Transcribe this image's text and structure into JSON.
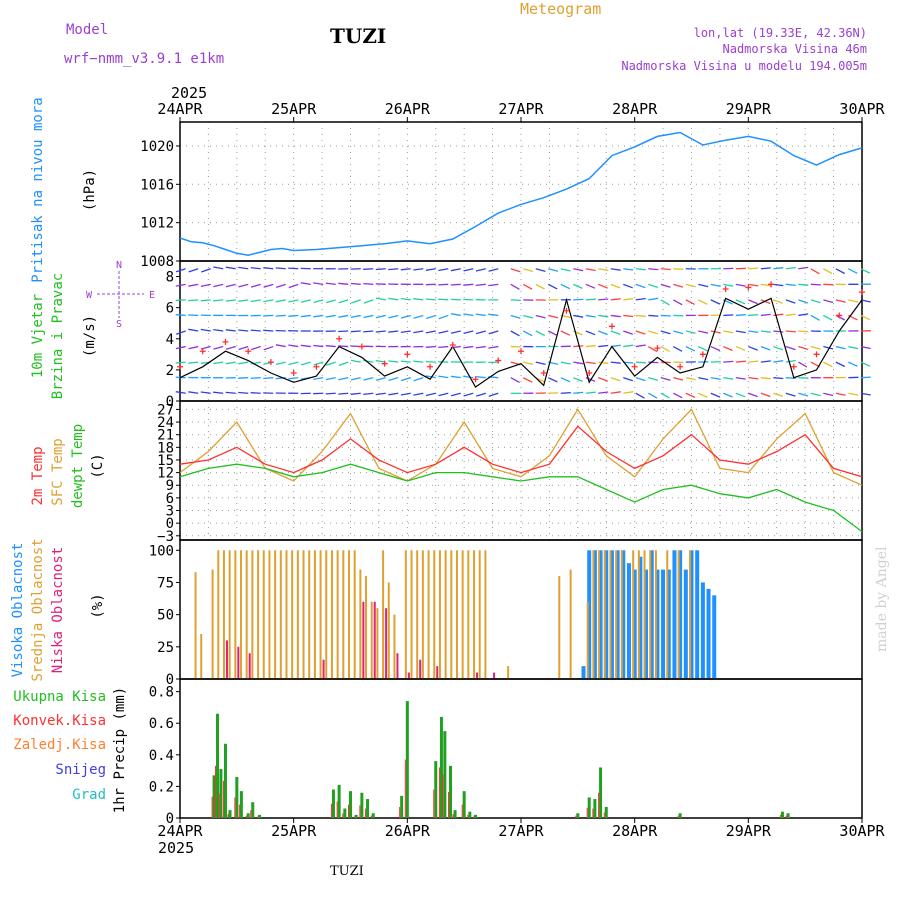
{
  "header": {
    "model_label": "Model",
    "model_name": "wrf−nmm_v3.9.1  e1km",
    "station": "TUZI",
    "chart_title": "Meteogram",
    "coords": "lon,lat (19.33E, 42.36N)",
    "elevation": "Nadmorska Visina 46m",
    "model_elevation": "Nadmorska Visina u modelu 194.005m",
    "year_top": "2025",
    "year_bottom": "2025",
    "footer_station": "TUZI",
    "watermark": "made by Angel"
  },
  "colors": {
    "pressure": "#1e90ff",
    "wind_speed": "#000000",
    "gust": "#ff3030",
    "temp_2m": "#ff3030",
    "temp_sfc": "#e0a030",
    "dewpoint": "#20c020",
    "cloud_high": "#1e90ff",
    "cloud_mid": "#e0a030",
    "cloud_low": "#e0207a",
    "precip_total": "#20a020",
    "precip_conv": "#ff3030",
    "model_label": "#9b40d0",
    "title": "#e0a030",
    "watermark": "#d0d0d0"
  },
  "chart_data": [
    {
      "type": "line",
      "x_labels": [
        "24APR",
        "25APR",
        "26APR",
        "27APR",
        "28APR",
        "29APR",
        "30APR"
      ],
      "ylabel": [
        "Pritisak na nivou mora",
        "(hPa)"
      ],
      "yticks": [
        1008,
        1012,
        1016,
        1020
      ],
      "ylim": [
        1008,
        1022.5
      ],
      "grid": true,
      "series": [
        {
          "name": "Pritisak na nivou mora",
          "x": [
            0,
            0.1,
            0.2,
            0.3,
            0.4,
            0.5,
            0.6,
            0.7,
            0.8,
            0.9,
            1.0,
            1.2,
            1.4,
            1.6,
            1.8,
            2.0,
            2.2,
            2.4,
            2.6,
            2.8,
            3.0,
            3.2,
            3.4,
            3.6,
            3.8,
            4.0,
            4.2,
            4.4,
            4.6,
            4.8,
            5.0,
            5.2,
            5.4,
            5.6,
            5.8,
            6.0
          ],
          "values": [
            1010.4,
            1010.0,
            1009.9,
            1009.6,
            1009.2,
            1008.8,
            1008.6,
            1008.9,
            1009.2,
            1009.3,
            1009.1,
            1009.2,
            1009.4,
            1009.6,
            1009.8,
            1010.1,
            1009.8,
            1010.3,
            1011.6,
            1013.0,
            1013.9,
            1014.6,
            1015.5,
            1016.6,
            1019.0,
            1019.9,
            1021.0,
            1021.4,
            1020.1,
            1020.6,
            1021.0,
            1020.5,
            1019.0,
            1018.0,
            1019.1,
            1019.8
          ]
        }
      ]
    },
    {
      "type": "line",
      "ylabel": [
        "10m Vjetar",
        "Brzina i Pravac",
        "(m/s)"
      ],
      "compass_legend": [
        "N",
        "W",
        "E",
        "S"
      ],
      "yticks": [
        0,
        2,
        4,
        6,
        8
      ],
      "ylim": [
        0,
        9
      ],
      "series": [
        {
          "name": "speed",
          "x": [
            0,
            0.2,
            0.4,
            0.6,
            0.8,
            1.0,
            1.2,
            1.4,
            1.6,
            1.8,
            2.0,
            2.2,
            2.4,
            2.6,
            2.8,
            3.0,
            3.2,
            3.4,
            3.6,
            3.8,
            4.0,
            4.2,
            4.4,
            4.6,
            4.8,
            5.0,
            5.2,
            5.4,
            5.6,
            5.8,
            6.0
          ],
          "values": [
            1.5,
            2.2,
            3.2,
            2.6,
            1.8,
            1.2,
            1.6,
            3.5,
            2.8,
            1.6,
            2.2,
            1.4,
            3.5,
            0.9,
            1.9,
            2.4,
            1.0,
            6.5,
            1.2,
            3.5,
            1.6,
            2.8,
            1.8,
            2.2,
            6.6,
            5.9,
            6.6,
            1.5,
            2.0,
            4.5,
            6.5
          ]
        },
        {
          "name": "gust",
          "x": [
            0,
            0.2,
            0.4,
            0.6,
            0.8,
            1.0,
            1.2,
            1.4,
            1.6,
            1.8,
            2.0,
            2.2,
            2.4,
            2.6,
            2.8,
            3.0,
            3.2,
            3.4,
            3.6,
            3.8,
            4.0,
            4.2,
            4.4,
            4.6,
            4.8,
            5.0,
            5.2,
            5.4,
            5.6,
            5.8,
            6.0
          ],
          "values": [
            2.2,
            3.2,
            3.8,
            3.2,
            2.5,
            1.8,
            2.2,
            4.0,
            3.5,
            2.4,
            3.0,
            2.2,
            3.6,
            1.4,
            2.6,
            3.2,
            1.8,
            5.8,
            1.8,
            4.8,
            2.2,
            3.4,
            2.2,
            3.0,
            7.2,
            7.3,
            7.5,
            2.2,
            3.0,
            5.5,
            7.0
          ]
        }
      ]
    },
    {
      "type": "line",
      "ylabel": [
        "2m Temp",
        "SFC Temp",
        "dewpt Temp",
        "(C)"
      ],
      "yticks": [
        -3,
        0,
        3,
        6,
        9,
        12,
        15,
        18,
        21,
        24,
        27
      ],
      "ylim": [
        -4,
        29
      ],
      "grid": true,
      "series": [
        {
          "name": "2m Temp",
          "x": [
            0,
            0.25,
            0.5,
            0.75,
            1.0,
            1.25,
            1.5,
            1.75,
            2.0,
            2.25,
            2.5,
            2.75,
            3.0,
            3.25,
            3.5,
            3.75,
            4.0,
            4.25,
            4.5,
            4.75,
            5.0,
            5.25,
            5.5,
            5.75,
            6.0
          ],
          "values": [
            14,
            15,
            18,
            14,
            12,
            15,
            20,
            15,
            12,
            14,
            18,
            14,
            12,
            14,
            23,
            17,
            13,
            16,
            21,
            15,
            14,
            17,
            21,
            13,
            11
          ]
        },
        {
          "name": "SFC Temp",
          "x": [
            0,
            0.25,
            0.5,
            0.75,
            1.0,
            1.25,
            1.5,
            1.75,
            2.0,
            2.25,
            2.5,
            2.75,
            3.0,
            3.25,
            3.5,
            3.75,
            4.0,
            4.25,
            4.5,
            4.75,
            5.0,
            5.25,
            5.5,
            5.75,
            6.0
          ],
          "values": [
            12,
            17,
            24,
            13,
            10,
            17,
            26,
            13,
            10,
            14,
            24,
            13,
            11,
            16,
            27,
            16,
            11,
            20,
            27,
            13,
            12,
            20,
            26,
            12,
            9
          ]
        },
        {
          "name": "dewpt Temp",
          "x": [
            0,
            0.25,
            0.5,
            0.75,
            1.0,
            1.25,
            1.5,
            1.75,
            2.0,
            2.25,
            2.5,
            2.75,
            3.0,
            3.25,
            3.5,
            3.75,
            4.0,
            4.25,
            4.5,
            4.75,
            5.0,
            5.25,
            5.5,
            5.75,
            6.0
          ],
          "values": [
            11,
            13,
            14,
            13,
            11,
            12,
            14,
            12,
            10,
            12,
            12,
            11,
            10,
            11,
            11,
            8,
            5,
            8,
            9,
            7,
            6,
            8,
            5,
            3,
            -2
          ]
        }
      ]
    },
    {
      "type": "bar",
      "ylabel": [
        "Visoka Oblacnost",
        "Srednja Oblacnost",
        "Niska Oblacnost",
        "(%)"
      ],
      "yticks": [
        0,
        25,
        50,
        75,
        100
      ],
      "ylim": [
        0,
        108
      ],
      "series": [
        {
          "name": "Visoka Oblacnost",
          "x": [
            3.55,
            3.6,
            3.65,
            3.7,
            3.75,
            3.8,
            3.85,
            3.9,
            3.95,
            4.0,
            4.05,
            4.1,
            4.15,
            4.2,
            4.25,
            4.3,
            4.35,
            4.4,
            4.45,
            4.5,
            4.55,
            4.6,
            4.65,
            4.7
          ],
          "values": [
            10,
            100,
            100,
            100,
            100,
            100,
            100,
            100,
            90,
            85,
            95,
            85,
            100,
            85,
            85,
            85,
            100,
            100,
            85,
            100,
            100,
            75,
            70,
            65
          ]
        },
        {
          "name": "Srednja Oblacnost",
          "x": [
            0.15,
            0.2,
            0.3,
            0.35,
            0.4,
            0.45,
            0.5,
            0.55,
            0.6,
            0.65,
            0.7,
            0.75,
            0.8,
            0.85,
            0.9,
            0.95,
            1.0,
            1.05,
            1.1,
            1.15,
            1.2,
            1.25,
            1.3,
            1.35,
            1.4,
            1.45,
            1.5,
            1.55,
            1.6,
            1.65,
            1.7,
            1.75,
            1.8,
            1.85,
            1.9,
            2.0,
            2.05,
            2.1,
            2.15,
            2.2,
            2.25,
            2.3,
            2.35,
            2.4,
            2.45,
            2.5,
            2.55,
            2.6,
            2.65,
            2.7,
            2.9,
            3.35,
            3.45,
            3.6,
            3.65,
            3.7,
            3.75,
            3.8,
            3.85,
            3.9,
            4.0,
            4.05,
            4.1,
            4.15,
            4.2,
            4.3,
            4.4,
            4.5
          ],
          "values": [
            83,
            35,
            85,
            100,
            100,
            100,
            100,
            100,
            100,
            100,
            100,
            100,
            100,
            100,
            100,
            100,
            100,
            100,
            100,
            100,
            100,
            100,
            100,
            100,
            100,
            100,
            100,
            100,
            85,
            80,
            60,
            55,
            100,
            75,
            50,
            100,
            100,
            100,
            100,
            100,
            100,
            100,
            100,
            100,
            100,
            100,
            100,
            100,
            100,
            100,
            10,
            80,
            85,
            60,
            100,
            100,
            100,
            100,
            100,
            100,
            100,
            100,
            100,
            100,
            100,
            100,
            100,
            100
          ]
        },
        {
          "name": "Niska Oblacnost",
          "x": [
            0.4,
            0.5,
            0.6,
            1.25,
            1.6,
            1.7,
            1.8,
            1.9,
            2.0,
            2.1,
            2.25,
            2.6,
            2.75
          ],
          "values": [
            30,
            25,
            20,
            15,
            60,
            60,
            55,
            20,
            5,
            15,
            10,
            5,
            5
          ]
        }
      ]
    },
    {
      "type": "bar",
      "ylabel": [
        "1hr Precip (mm)"
      ],
      "legend": [
        "Ukupna Kisa",
        "Konvek.Kisa",
        "Zaledj.Kisa",
        "Snijeg",
        "Grad"
      ],
      "yticks": [
        0,
        0.2,
        0.4,
        0.6,
        0.8
      ],
      "ylim": [
        0,
        0.88
      ],
      "series": [
        {
          "name": "Ukupna Kisa",
          "x": [
            0.3,
            0.33,
            0.36,
            0.4,
            0.44,
            0.5,
            0.54,
            0.6,
            0.64,
            0.7,
            1.35,
            1.4,
            1.45,
            1.5,
            1.55,
            1.6,
            1.65,
            1.7,
            1.95,
            2.0,
            2.25,
            2.3,
            2.33,
            2.38,
            2.42,
            2.5,
            2.55,
            2.6,
            3.5,
            3.6,
            3.65,
            3.7,
            3.75,
            4.4,
            5.3,
            5.35
          ],
          "values": [
            0.27,
            0.66,
            0.31,
            0.47,
            0.05,
            0.26,
            0.17,
            0.03,
            0.1,
            0.02,
            0.18,
            0.21,
            0.06,
            0.17,
            0.02,
            0.16,
            0.12,
            0.03,
            0.14,
            0.74,
            0.36,
            0.64,
            0.55,
            0.33,
            0.05,
            0.17,
            0.04,
            0.02,
            0.03,
            0.13,
            0.12,
            0.32,
            0.07,
            0.03,
            0.04,
            0.03
          ]
        }
      ]
    }
  ]
}
